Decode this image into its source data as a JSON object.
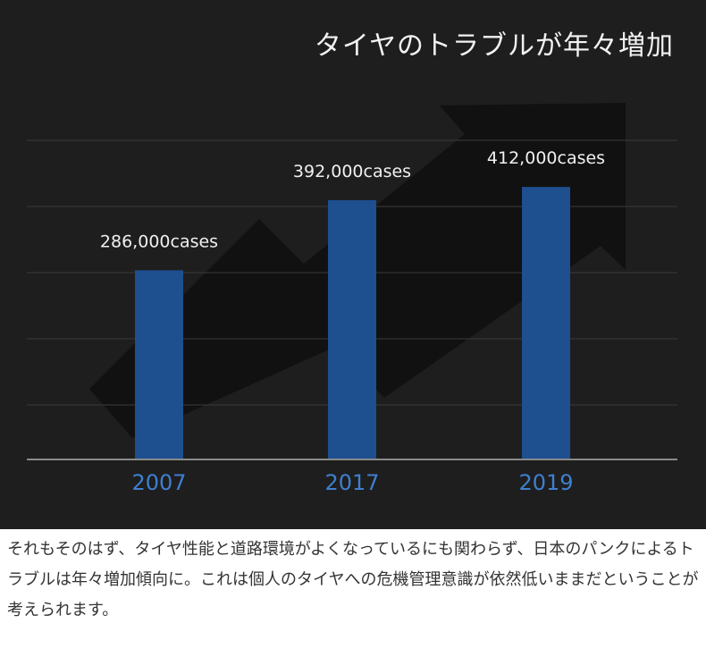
{
  "title": "タイヤのトラブルが年々増加",
  "caption": "それもそのはず、タイヤ性能と道路環境がよくなっているにも関わらず、日本のパンクによるトラブルは年々増加傾向に。これは個人のタイヤへの危機管理意識が依然低いままだということが考えられます。",
  "colors": {
    "background": "#1e1e1e",
    "bar": "#1e4f8f",
    "year_label": "#3f7fd0",
    "value_label": "#f0f0f0",
    "grid": "#3a3a3a",
    "arrow": "#111111"
  },
  "chart_data": {
    "type": "bar",
    "title": "タイヤのトラブルが年々増加",
    "categories": [
      "2007",
      "2017",
      "2019"
    ],
    "values": [
      286000,
      392000,
      412000
    ],
    "data_labels": [
      "286,000cases",
      "392,000cases",
      "412,000cases"
    ],
    "ylim": [
      0,
      500000
    ],
    "grid": true,
    "legend": "none",
    "decoration": "upward-trend-arrow"
  }
}
